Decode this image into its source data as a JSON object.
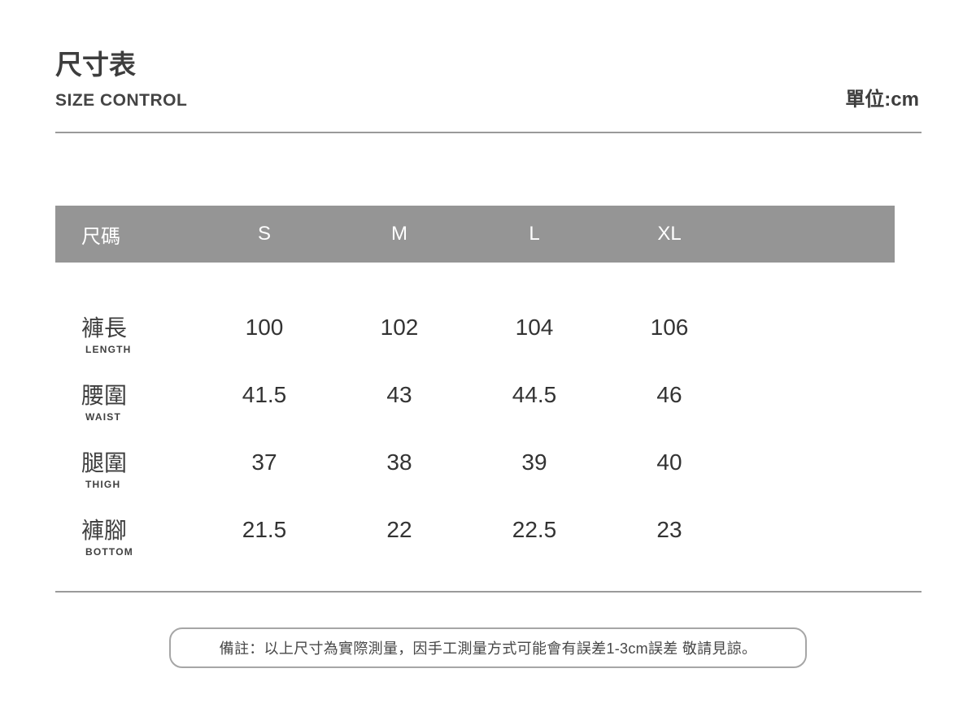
{
  "header": {
    "title": "尺寸表",
    "subtitle": "SIZE CONTROL",
    "unit": "單位:cm"
  },
  "table": {
    "size_header_label": "尺碼",
    "sizes": [
      "S",
      "M",
      "L",
      "XL"
    ],
    "rows": [
      {
        "label_zh": "褲長",
        "label_en": "LENGTH",
        "values": [
          "100",
          "102",
          "104",
          "106"
        ]
      },
      {
        "label_zh": "腰圍",
        "label_en": "WAIST",
        "values": [
          "41.5",
          "43",
          "44.5",
          "46"
        ]
      },
      {
        "label_zh": "腿圍",
        "label_en": "THIGH",
        "values": [
          "37",
          "38",
          "39",
          "40"
        ]
      },
      {
        "label_zh": "褲腳",
        "label_en": "BOTTOM",
        "values": [
          "21.5",
          "22",
          "22.5",
          "23"
        ]
      }
    ]
  },
  "note": {
    "text": "備註：以上尺寸為實際測量，因手工測量方式可能會有誤差1-3cm誤差 敬請見諒。"
  },
  "colors": {
    "header_bar": "#959595",
    "header_bar_text": "#ffffff",
    "text_dark": "#3d3d3d",
    "divider": "#9a9a9a",
    "note_border": "#a6a6a6"
  },
  "chart_data": {
    "type": "table",
    "title": "尺寸表 SIZE CONTROL",
    "unit": "cm",
    "columns": [
      "尺碼",
      "S",
      "M",
      "L",
      "XL"
    ],
    "row_labels": [
      "褲長 LENGTH",
      "腰圍 WAIST",
      "腿圍 THIGH",
      "褲腳 BOTTOM"
    ],
    "rows": [
      [
        100,
        102,
        104,
        106
      ],
      [
        41.5,
        43,
        44.5,
        46
      ],
      [
        37,
        38,
        39,
        40
      ],
      [
        21.5,
        22,
        22.5,
        23
      ]
    ],
    "note": "備註：以上尺寸為實際測量，因手工測量方式可能會有誤差1-3cm誤差 敬請見諒。"
  }
}
